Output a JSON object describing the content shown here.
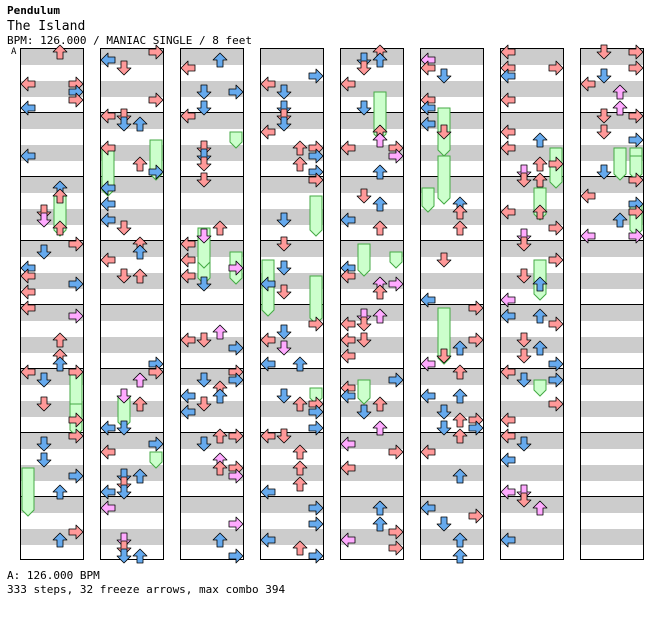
{
  "header": {
    "artist": "Pendulum",
    "title": "The Island",
    "info": "BPM: 126.000 / MANIAC SINGLE / 8 feet"
  },
  "marker_label": "A",
  "footer": {
    "bpm_line": "A: 126.000 BPM",
    "stats_line": "333 steps, 32 freeze arrows, max combo 394"
  },
  "colors": {
    "arrow_red": "#ff9999",
    "arrow_blue": "#66aaee",
    "arrow_pink": "#ffaaff",
    "freeze_fill": "#ccffcc",
    "freeze_stroke": "#44aa44",
    "stripe": "#cccccc"
  },
  "chart_data": {
    "type": "stepchart",
    "columns": 8,
    "measures_per_column": 8,
    "lanes": [
      "left",
      "down",
      "up",
      "right"
    ],
    "freeze_count": 32,
    "steps": 333,
    "max_combo": 394
  }
}
